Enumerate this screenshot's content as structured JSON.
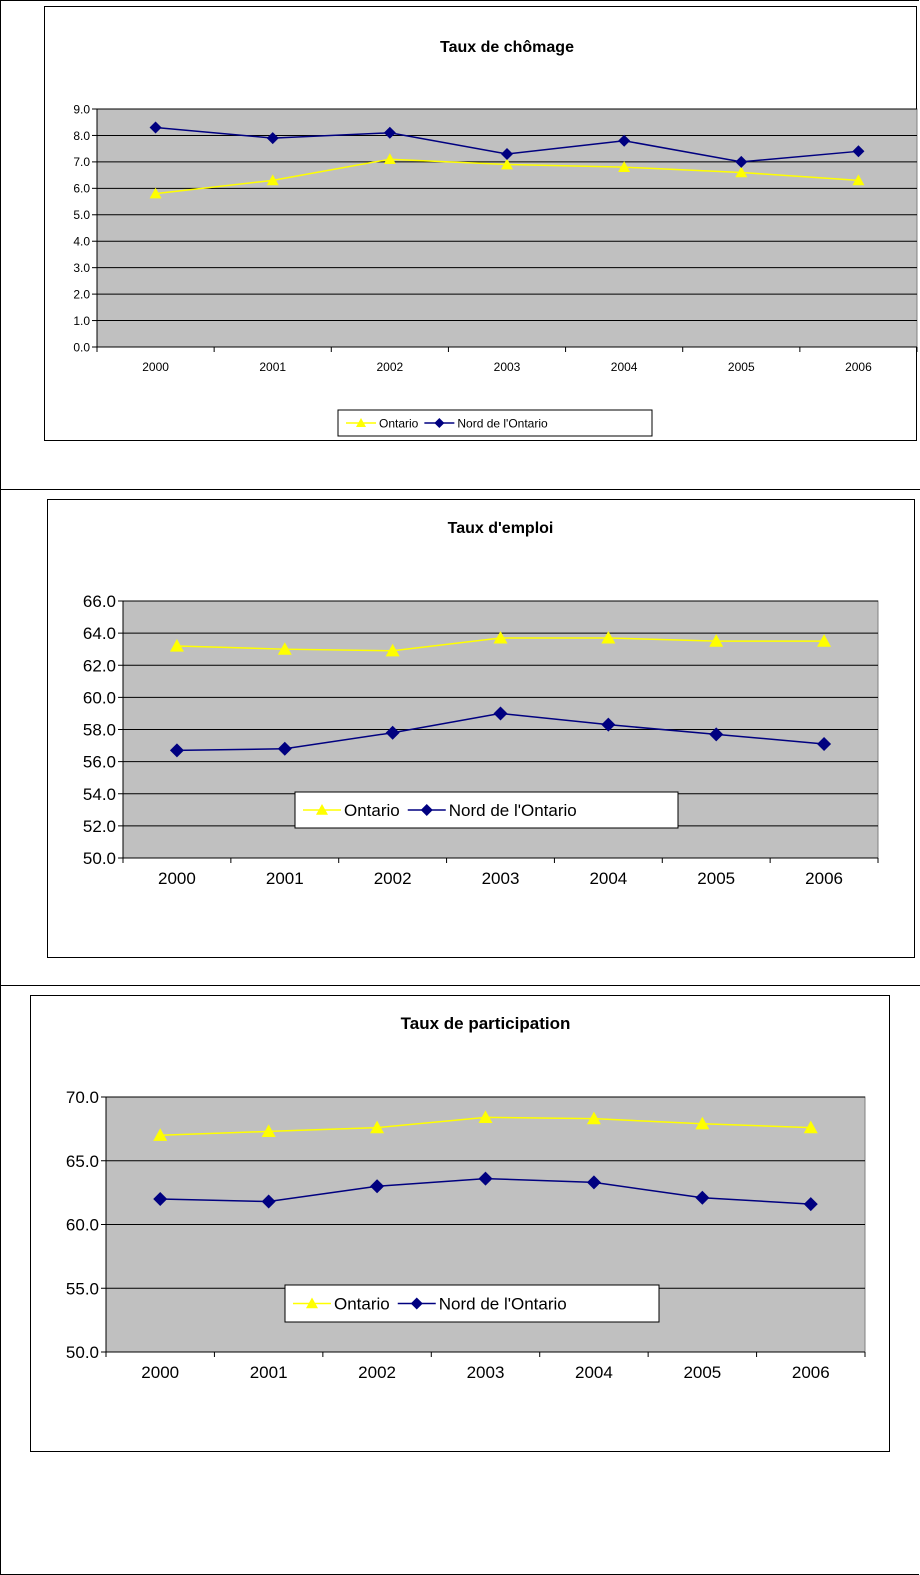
{
  "colors": {
    "plot_background": "#c0c0c0",
    "ontario": "#ffff00",
    "nord": "#000080"
  },
  "chart_data": [
    {
      "type": "line",
      "title": "Taux de chômage",
      "xlabel": "",
      "ylabel": "",
      "categories": [
        "2000",
        "2001",
        "2002",
        "2003",
        "2004",
        "2005",
        "2006"
      ],
      "ylim": [
        0,
        9
      ],
      "ystep": 1,
      "ytick_decimals": 1,
      "grid": true,
      "legend_position": "bottom",
      "series": [
        {
          "name": "Ontario",
          "marker": "triangle",
          "values": [
            5.8,
            6.3,
            7.1,
            6.9,
            6.8,
            6.6,
            6.3
          ]
        },
        {
          "name": "Nord de l'Ontario",
          "marker": "diamond",
          "values": [
            8.3,
            7.9,
            8.1,
            7.3,
            7.8,
            7.0,
            7.4
          ]
        }
      ]
    },
    {
      "type": "line",
      "title": "Taux d'emploi",
      "xlabel": "",
      "ylabel": "",
      "categories": [
        "2000",
        "2001",
        "2002",
        "2003",
        "2004",
        "2005",
        "2006"
      ],
      "ylim": [
        50,
        66
      ],
      "ystep": 2,
      "ytick_decimals": 1,
      "grid": true,
      "legend_position": "bottom",
      "series": [
        {
          "name": "Ontario",
          "marker": "triangle",
          "values": [
            63.2,
            63.0,
            62.9,
            63.7,
            63.7,
            63.5,
            63.5
          ]
        },
        {
          "name": "Nord de l'Ontario",
          "marker": "diamond",
          "values": [
            56.7,
            56.8,
            57.8,
            59.0,
            58.3,
            57.7,
            57.1
          ]
        }
      ]
    },
    {
      "type": "line",
      "title": "Taux de participation",
      "xlabel": "",
      "ylabel": "",
      "categories": [
        "2000",
        "2001",
        "2002",
        "2003",
        "2004",
        "2005",
        "2006"
      ],
      "ylim": [
        50,
        70
      ],
      "ystep": 5,
      "ytick_decimals": 1,
      "grid": true,
      "legend_position": "bottom",
      "series": [
        {
          "name": "Ontario",
          "marker": "triangle",
          "values": [
            67.0,
            67.3,
            67.6,
            68.4,
            68.3,
            67.9,
            67.6
          ]
        },
        {
          "name": "Nord de l'Ontario",
          "marker": "diamond",
          "values": [
            62.0,
            61.8,
            63.0,
            63.6,
            63.3,
            62.1,
            61.6
          ]
        }
      ]
    }
  ]
}
